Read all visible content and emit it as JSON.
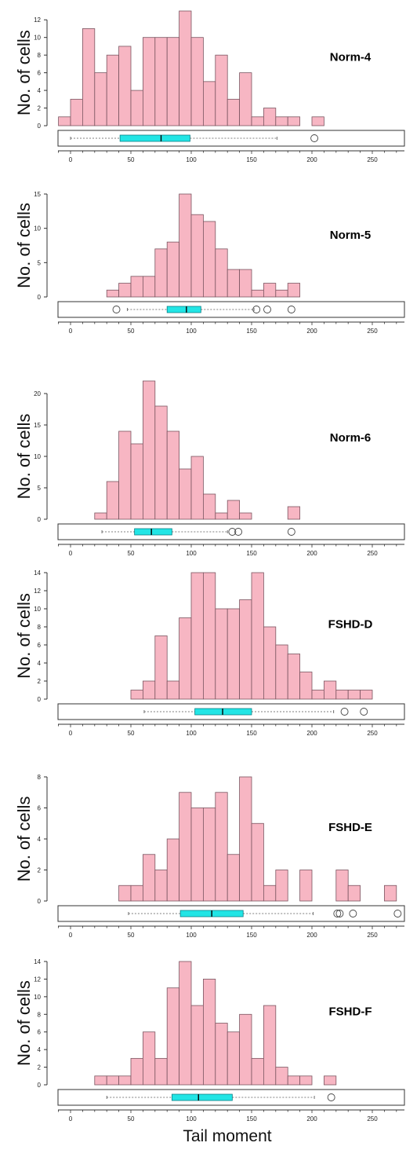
{
  "chart_data": [
    {
      "type": "bar",
      "title": "Norm-4",
      "ylabel": "No. of cells",
      "xlim": [
        -10,
        280
      ],
      "ylim": [
        0,
        13
      ],
      "yticks": [
        0,
        2,
        4,
        6,
        8,
        10,
        12
      ],
      "bin_width": 10,
      "bins": [
        {
          "x": -10,
          "count": 1
        },
        {
          "x": 0,
          "count": 3
        },
        {
          "x": 10,
          "count": 11
        },
        {
          "x": 20,
          "count": 6
        },
        {
          "x": 30,
          "count": 8
        },
        {
          "x": 40,
          "count": 9
        },
        {
          "x": 50,
          "count": 4
        },
        {
          "x": 60,
          "count": 10
        },
        {
          "x": 70,
          "count": 10
        },
        {
          "x": 80,
          "count": 10
        },
        {
          "x": 90,
          "count": 13
        },
        {
          "x": 100,
          "count": 10
        },
        {
          "x": 110,
          "count": 5
        },
        {
          "x": 120,
          "count": 8
        },
        {
          "x": 130,
          "count": 3
        },
        {
          "x": 140,
          "count": 6
        },
        {
          "x": 150,
          "count": 1
        },
        {
          "x": 160,
          "count": 2
        },
        {
          "x": 170,
          "count": 1
        },
        {
          "x": 180,
          "count": 1
        },
        {
          "x": 200,
          "count": 1
        }
      ],
      "boxplot": {
        "whisker_low": 0,
        "q1": 41,
        "median": 75,
        "q3": 99,
        "whisker_high": 171,
        "outliers": [
          202
        ]
      }
    },
    {
      "type": "bar",
      "title": "Norm-5",
      "ylabel": "No. of cells",
      "xlim": [
        -10,
        280
      ],
      "ylim": [
        0,
        15
      ],
      "yticks": [
        0,
        5,
        10,
        15
      ],
      "bin_width": 10,
      "bins": [
        {
          "x": 30,
          "count": 1
        },
        {
          "x": 40,
          "count": 2
        },
        {
          "x": 50,
          "count": 3
        },
        {
          "x": 60,
          "count": 3
        },
        {
          "x": 70,
          "count": 7
        },
        {
          "x": 80,
          "count": 8
        },
        {
          "x": 90,
          "count": 15
        },
        {
          "x": 100,
          "count": 12
        },
        {
          "x": 110,
          "count": 11
        },
        {
          "x": 120,
          "count": 7
        },
        {
          "x": 130,
          "count": 4
        },
        {
          "x": 140,
          "count": 4
        },
        {
          "x": 150,
          "count": 1
        },
        {
          "x": 160,
          "count": 2
        },
        {
          "x": 170,
          "count": 1
        },
        {
          "x": 180,
          "count": 2
        }
      ],
      "boxplot": {
        "whisker_low": 47,
        "q1": 80,
        "median": 96,
        "q3": 108,
        "whisker_high": 152,
        "outliers": [
          38,
          154,
          163,
          183
        ]
      }
    },
    {
      "type": "bar",
      "title": "Norm-6",
      "ylabel": "No. of cells",
      "xlim": [
        -10,
        280
      ],
      "ylim": [
        0,
        22
      ],
      "yticks": [
        0,
        5,
        10,
        15,
        20
      ],
      "bin_width": 10,
      "bins": [
        {
          "x": 20,
          "count": 1
        },
        {
          "x": 30,
          "count": 6
        },
        {
          "x": 40,
          "count": 14
        },
        {
          "x": 50,
          "count": 12
        },
        {
          "x": 60,
          "count": 22
        },
        {
          "x": 70,
          "count": 18
        },
        {
          "x": 80,
          "count": 14
        },
        {
          "x": 90,
          "count": 8
        },
        {
          "x": 100,
          "count": 10
        },
        {
          "x": 110,
          "count": 4
        },
        {
          "x": 120,
          "count": 1
        },
        {
          "x": 130,
          "count": 3
        },
        {
          "x": 140,
          "count": 1
        },
        {
          "x": 180,
          "count": 2
        }
      ],
      "boxplot": {
        "whisker_low": 26,
        "q1": 53,
        "median": 67,
        "q3": 84,
        "whisker_high": 130,
        "outliers": [
          134,
          139,
          183
        ]
      }
    },
    {
      "type": "bar",
      "title": "FSHD-D",
      "ylabel": "No. of cells",
      "xlim": [
        -10,
        280
      ],
      "ylim": [
        0,
        14
      ],
      "yticks": [
        0,
        2,
        4,
        6,
        8,
        10,
        12,
        14
      ],
      "bin_width": 10,
      "bins": [
        {
          "x": 50,
          "count": 1
        },
        {
          "x": 60,
          "count": 2
        },
        {
          "x": 70,
          "count": 7
        },
        {
          "x": 80,
          "count": 2
        },
        {
          "x": 90,
          "count": 9
        },
        {
          "x": 100,
          "count": 14
        },
        {
          "x": 110,
          "count": 14
        },
        {
          "x": 120,
          "count": 10
        },
        {
          "x": 130,
          "count": 10
        },
        {
          "x": 140,
          "count": 11
        },
        {
          "x": 150,
          "count": 14
        },
        {
          "x": 160,
          "count": 8
        },
        {
          "x": 170,
          "count": 6
        },
        {
          "x": 180,
          "count": 5
        },
        {
          "x": 190,
          "count": 3
        },
        {
          "x": 200,
          "count": 1
        },
        {
          "x": 210,
          "count": 2
        },
        {
          "x": 220,
          "count": 1
        },
        {
          "x": 230,
          "count": 1
        },
        {
          "x": 240,
          "count": 1
        }
      ],
      "boxplot": {
        "whisker_low": 61,
        "q1": 103,
        "median": 126,
        "q3": 150,
        "whisker_high": 218,
        "outliers": [
          227,
          243
        ]
      }
    },
    {
      "type": "bar",
      "title": "FSHD-E",
      "ylabel": "No. of cells",
      "xlim": [
        -10,
        280
      ],
      "ylim": [
        0,
        8
      ],
      "yticks": [
        0,
        2,
        4,
        6,
        8
      ],
      "bin_width": 10,
      "bins": [
        {
          "x": 40,
          "count": 1
        },
        {
          "x": 50,
          "count": 1
        },
        {
          "x": 60,
          "count": 3
        },
        {
          "x": 70,
          "count": 2
        },
        {
          "x": 80,
          "count": 4
        },
        {
          "x": 90,
          "count": 7
        },
        {
          "x": 100,
          "count": 6
        },
        {
          "x": 110,
          "count": 6
        },
        {
          "x": 120,
          "count": 7
        },
        {
          "x": 130,
          "count": 3
        },
        {
          "x": 140,
          "count": 8
        },
        {
          "x": 150,
          "count": 5
        },
        {
          "x": 160,
          "count": 1
        },
        {
          "x": 170,
          "count": 2
        },
        {
          "x": 190,
          "count": 2
        },
        {
          "x": 220,
          "count": 2
        },
        {
          "x": 230,
          "count": 1
        },
        {
          "x": 260,
          "count": 1
        }
      ],
      "boxplot": {
        "whisker_low": 48,
        "q1": 91,
        "median": 117,
        "q3": 143,
        "whisker_high": 201,
        "outliers": [
          221,
          223,
          234,
          271
        ]
      }
    },
    {
      "type": "bar",
      "title": "FSHD-F",
      "ylabel": "No. of cells",
      "xlabel": "Tail moment",
      "xlim": [
        -10,
        280
      ],
      "ylim": [
        0,
        14
      ],
      "yticks": [
        0,
        2,
        4,
        6,
        8,
        10,
        12,
        14
      ],
      "bin_width": 10,
      "bins": [
        {
          "x": 20,
          "count": 1
        },
        {
          "x": 30,
          "count": 1
        },
        {
          "x": 40,
          "count": 1
        },
        {
          "x": 50,
          "count": 3
        },
        {
          "x": 60,
          "count": 6
        },
        {
          "x": 70,
          "count": 3
        },
        {
          "x": 80,
          "count": 11
        },
        {
          "x": 90,
          "count": 14
        },
        {
          "x": 100,
          "count": 9
        },
        {
          "x": 110,
          "count": 12
        },
        {
          "x": 120,
          "count": 7
        },
        {
          "x": 130,
          "count": 6
        },
        {
          "x": 140,
          "count": 8
        },
        {
          "x": 150,
          "count": 3
        },
        {
          "x": 160,
          "count": 9
        },
        {
          "x": 170,
          "count": 2
        },
        {
          "x": 180,
          "count": 1
        },
        {
          "x": 190,
          "count": 1
        },
        {
          "x": 210,
          "count": 1
        }
      ],
      "boxplot": {
        "whisker_low": 30,
        "q1": 84,
        "median": 106,
        "q3": 134,
        "whisker_high": 202,
        "outliers": [
          216
        ]
      }
    }
  ],
  "xticks": [
    0,
    50,
    100,
    150,
    200,
    250
  ],
  "colors": {
    "bar_fill": "#f7b6c3",
    "bar_stroke": "#7a5560",
    "box_fill": "#22e5e5",
    "axis": "#333333",
    "whisker": "#555555"
  }
}
